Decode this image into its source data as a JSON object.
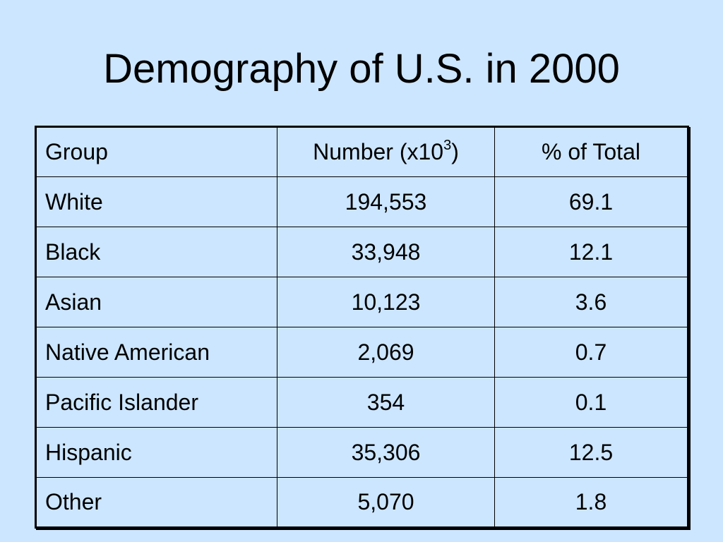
{
  "slide": {
    "title": "Demography of U.S. in 2000",
    "background_color": "#cce6ff"
  },
  "table": {
    "headers": {
      "group": "Group",
      "number_prefix": "Number (x10",
      "number_exponent": "3",
      "number_suffix": ")",
      "percent": "% of Total"
    },
    "rows": [
      {
        "group": "White",
        "number": "194,553",
        "percent": "69.1"
      },
      {
        "group": "Black",
        "number": "33,948",
        "percent": "12.1"
      },
      {
        "group": "Asian",
        "number": "10,123",
        "percent": "3.6"
      },
      {
        "group": "Native American",
        "number": "2,069",
        "percent": "0.7"
      },
      {
        "group": "Pacific Islander",
        "number": "354",
        "percent": "0.1"
      },
      {
        "group": "Hispanic",
        "number": "35,306",
        "percent": "12.5"
      },
      {
        "group": "Other",
        "number": "5,070",
        "percent": "1.8"
      }
    ]
  }
}
